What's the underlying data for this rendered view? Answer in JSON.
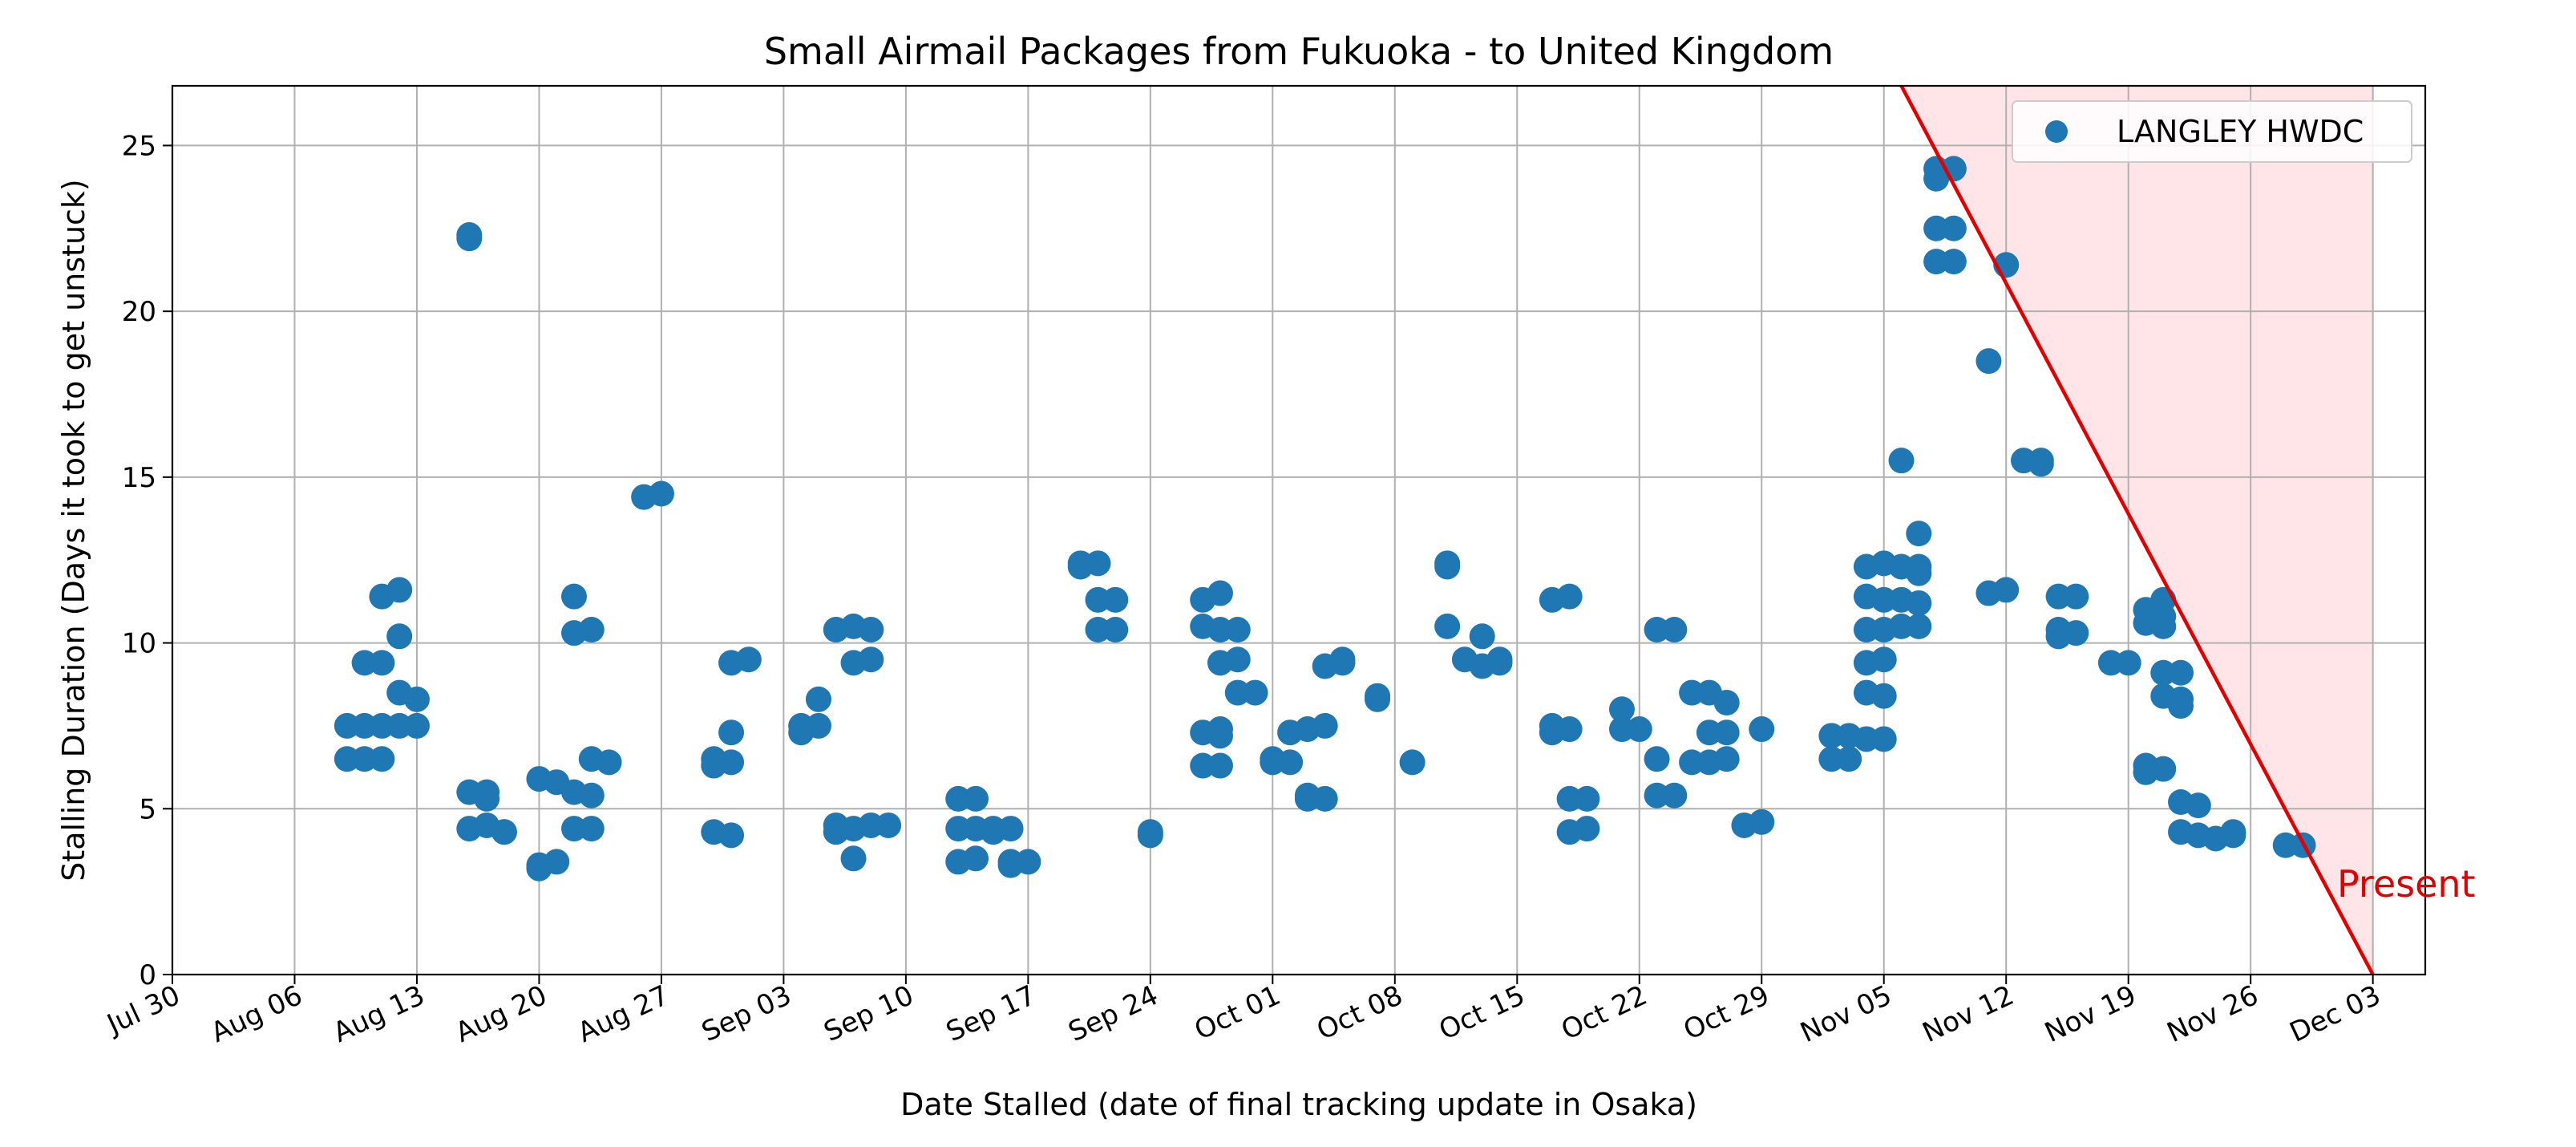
{
  "chart_data": {
    "type": "scatter",
    "title": "Small Airmail Packages from Fukuoka - to United Kingdom",
    "xlabel": "Date Stalled (date of final tracking update in Osaka)",
    "ylabel": "Stalling Duration (Days it took to get unstuck)",
    "x_axis_type": "date",
    "xlim": [
      "2023-07-30",
      "2023-12-06"
    ],
    "ylim": [
      0,
      26.8
    ],
    "x_ticks": [
      "2023-07-30",
      "2023-08-06",
      "2023-08-13",
      "2023-08-20",
      "2023-08-27",
      "2023-09-03",
      "2023-09-10",
      "2023-09-17",
      "2023-09-24",
      "2023-10-01",
      "2023-10-08",
      "2023-10-15",
      "2023-10-22",
      "2023-10-29",
      "2023-11-05",
      "2023-11-12",
      "2023-11-19",
      "2023-11-26",
      "2023-12-03"
    ],
    "x_tick_labels": [
      "Jul 30",
      "Aug 06",
      "Aug 13",
      "Aug 20",
      "Aug 27",
      "Sep 03",
      "Sep 10",
      "Sep 17",
      "Sep 24",
      "Oct 01",
      "Oct 08",
      "Oct 15",
      "Oct 22",
      "Oct 29",
      "Nov 05",
      "Nov 12",
      "Nov 19",
      "Nov 26",
      "Dec 03"
    ],
    "y_ticks": [
      0,
      5,
      10,
      15,
      20,
      25
    ],
    "y_tick_labels": [
      "0",
      "5",
      "10",
      "15",
      "20",
      "25"
    ],
    "grid": true,
    "legend_position": "top-right",
    "series": [
      {
        "name": "LANGLEY HWDC",
        "color": "#1f77b4",
        "points": [
          [
            "2023-08-09",
            7.5
          ],
          [
            "2023-08-09",
            6.5
          ],
          [
            "2023-08-10",
            7.5
          ],
          [
            "2023-08-10",
            6.5
          ],
          [
            "2023-08-10",
            9.4
          ],
          [
            "2023-08-11",
            7.5
          ],
          [
            "2023-08-11",
            6.5
          ],
          [
            "2023-08-11",
            11.4
          ],
          [
            "2023-08-11",
            9.4
          ],
          [
            "2023-08-12",
            10.2
          ],
          [
            "2023-08-12",
            11.6
          ],
          [
            "2023-08-12",
            8.5
          ],
          [
            "2023-08-12",
            7.5
          ],
          [
            "2023-08-13",
            8.3
          ],
          [
            "2023-08-13",
            7.5
          ],
          [
            "2023-08-16",
            22.3
          ],
          [
            "2023-08-16",
            22.2
          ],
          [
            "2023-08-16",
            5.5
          ],
          [
            "2023-08-16",
            4.4
          ],
          [
            "2023-08-17",
            5.3
          ],
          [
            "2023-08-17",
            4.5
          ],
          [
            "2023-08-17",
            5.5
          ],
          [
            "2023-08-18",
            4.3
          ],
          [
            "2023-08-18",
            4.3
          ],
          [
            "2023-08-20",
            3.3
          ],
          [
            "2023-08-20",
            3.2
          ],
          [
            "2023-08-20",
            5.9
          ],
          [
            "2023-08-21",
            3.4
          ],
          [
            "2023-08-21",
            5.8
          ],
          [
            "2023-08-22",
            5.5
          ],
          [
            "2023-08-22",
            11.4
          ],
          [
            "2023-08-22",
            10.3
          ],
          [
            "2023-08-22",
            4.4
          ],
          [
            "2023-08-23",
            10.4
          ],
          [
            "2023-08-23",
            5.4
          ],
          [
            "2023-08-23",
            4.4
          ],
          [
            "2023-08-23",
            6.5
          ],
          [
            "2023-08-24",
            6.4
          ],
          [
            "2023-08-26",
            14.4
          ],
          [
            "2023-08-27",
            14.5
          ],
          [
            "2023-08-30",
            6.5
          ],
          [
            "2023-08-30",
            4.3
          ],
          [
            "2023-08-30",
            6.3
          ],
          [
            "2023-08-31",
            4.2
          ],
          [
            "2023-08-31",
            7.3
          ],
          [
            "2023-08-31",
            6.4
          ],
          [
            "2023-08-31",
            9.4
          ],
          [
            "2023-09-01",
            9.5
          ],
          [
            "2023-09-04",
            7.3
          ],
          [
            "2023-09-04",
            7.5
          ],
          [
            "2023-09-05",
            8.3
          ],
          [
            "2023-09-05",
            7.5
          ],
          [
            "2023-09-06",
            10.4
          ],
          [
            "2023-09-06",
            4.5
          ],
          [
            "2023-09-06",
            4.3
          ],
          [
            "2023-09-07",
            3.5
          ],
          [
            "2023-09-07",
            10.5
          ],
          [
            "2023-09-07",
            9.4
          ],
          [
            "2023-09-07",
            4.4
          ],
          [
            "2023-09-08",
            10.4
          ],
          [
            "2023-09-08",
            9.5
          ],
          [
            "2023-09-08",
            4.5
          ],
          [
            "2023-09-09",
            4.5
          ],
          [
            "2023-09-13",
            5.3
          ],
          [
            "2023-09-13",
            4.4
          ],
          [
            "2023-09-13",
            3.4
          ],
          [
            "2023-09-14",
            5.3
          ],
          [
            "2023-09-14",
            4.4
          ],
          [
            "2023-09-14",
            3.5
          ],
          [
            "2023-09-15",
            4.3
          ],
          [
            "2023-09-15",
            4.4
          ],
          [
            "2023-09-16",
            4.4
          ],
          [
            "2023-09-16",
            3.4
          ],
          [
            "2023-09-16",
            3.3
          ],
          [
            "2023-09-17",
            3.4
          ],
          [
            "2023-09-20",
            12.4
          ],
          [
            "2023-09-20",
            12.3
          ],
          [
            "2023-09-21",
            12.4
          ],
          [
            "2023-09-21",
            11.3
          ],
          [
            "2023-09-21",
            10.4
          ],
          [
            "2023-09-22",
            11.3
          ],
          [
            "2023-09-22",
            10.4
          ],
          [
            "2023-09-24",
            4.2
          ],
          [
            "2023-09-24",
            4.3
          ],
          [
            "2023-09-27",
            11.3
          ],
          [
            "2023-09-27",
            10.5
          ],
          [
            "2023-09-27",
            7.3
          ],
          [
            "2023-09-27",
            6.3
          ],
          [
            "2023-09-28",
            11.5
          ],
          [
            "2023-09-28",
            10.4
          ],
          [
            "2023-09-28",
            7.4
          ],
          [
            "2023-09-28",
            7.2
          ],
          [
            "2023-09-28",
            6.3
          ],
          [
            "2023-09-28",
            9.4
          ],
          [
            "2023-09-29",
            10.4
          ],
          [
            "2023-09-29",
            9.5
          ],
          [
            "2023-09-29",
            8.5
          ],
          [
            "2023-09-30",
            8.5
          ],
          [
            "2023-10-01",
            6.4
          ],
          [
            "2023-10-01",
            6.5
          ],
          [
            "2023-10-02",
            7.3
          ],
          [
            "2023-10-02",
            6.4
          ],
          [
            "2023-10-03",
            7.4
          ],
          [
            "2023-10-03",
            5.3
          ],
          [
            "2023-10-03",
            5.4
          ],
          [
            "2023-10-04",
            7.5
          ],
          [
            "2023-10-04",
            5.3
          ],
          [
            "2023-10-04",
            9.3
          ],
          [
            "2023-10-05",
            9.5
          ],
          [
            "2023-10-05",
            9.4
          ],
          [
            "2023-10-07",
            8.3
          ],
          [
            "2023-10-07",
            8.4
          ],
          [
            "2023-10-09",
            6.4
          ],
          [
            "2023-10-11",
            12.3
          ],
          [
            "2023-10-11",
            12.4
          ],
          [
            "2023-10-11",
            10.5
          ],
          [
            "2023-10-12",
            9.5
          ],
          [
            "2023-10-13",
            9.3
          ],
          [
            "2023-10-13",
            10.2
          ],
          [
            "2023-10-14",
            9.5
          ],
          [
            "2023-10-14",
            9.4
          ],
          [
            "2023-10-17",
            11.3
          ],
          [
            "2023-10-17",
            7.3
          ],
          [
            "2023-10-17",
            7.5
          ],
          [
            "2023-10-18",
            11.4
          ],
          [
            "2023-10-18",
            7.4
          ],
          [
            "2023-10-18",
            5.3
          ],
          [
            "2023-10-18",
            4.3
          ],
          [
            "2023-10-19",
            5.3
          ],
          [
            "2023-10-19",
            4.4
          ],
          [
            "2023-10-21",
            8.0
          ],
          [
            "2023-10-21",
            7.4
          ],
          [
            "2023-10-22",
            7.4
          ],
          [
            "2023-10-23",
            10.4
          ],
          [
            "2023-10-23",
            6.5
          ],
          [
            "2023-10-23",
            5.4
          ],
          [
            "2023-10-24",
            10.4
          ],
          [
            "2023-10-24",
            5.4
          ],
          [
            "2023-10-25",
            6.4
          ],
          [
            "2023-10-25",
            8.5
          ],
          [
            "2023-10-26",
            8.5
          ],
          [
            "2023-10-26",
            6.4
          ],
          [
            "2023-10-26",
            7.3
          ],
          [
            "2023-10-27",
            7.3
          ],
          [
            "2023-10-27",
            6.5
          ],
          [
            "2023-10-27",
            8.2
          ],
          [
            "2023-10-28",
            4.5
          ],
          [
            "2023-10-29",
            4.6
          ],
          [
            "2023-10-29",
            7.4
          ],
          [
            "2023-11-02",
            7.2
          ],
          [
            "2023-11-02",
            6.5
          ],
          [
            "2023-11-03",
            7.2
          ],
          [
            "2023-11-03",
            6.5
          ],
          [
            "2023-11-04",
            12.3
          ],
          [
            "2023-11-04",
            11.4
          ],
          [
            "2023-11-04",
            10.4
          ],
          [
            "2023-11-04",
            9.4
          ],
          [
            "2023-11-04",
            8.5
          ],
          [
            "2023-11-04",
            7.1
          ],
          [
            "2023-11-05",
            12.4
          ],
          [
            "2023-11-05",
            11.3
          ],
          [
            "2023-11-05",
            10.4
          ],
          [
            "2023-11-05",
            9.5
          ],
          [
            "2023-11-05",
            8.4
          ],
          [
            "2023-11-05",
            7.1
          ],
          [
            "2023-11-06",
            12.3
          ],
          [
            "2023-11-06",
            11.3
          ],
          [
            "2023-11-06",
            10.5
          ],
          [
            "2023-11-06",
            15.5
          ],
          [
            "2023-11-07",
            13.3
          ],
          [
            "2023-11-07",
            12.1
          ],
          [
            "2023-11-07",
            11.2
          ],
          [
            "2023-11-07",
            10.5
          ],
          [
            "2023-11-07",
            12.3
          ],
          [
            "2023-11-08",
            24.3
          ],
          [
            "2023-11-08",
            24.0
          ],
          [
            "2023-11-08",
            22.5
          ],
          [
            "2023-11-08",
            21.5
          ],
          [
            "2023-11-09",
            24.3
          ],
          [
            "2023-11-09",
            22.5
          ],
          [
            "2023-11-09",
            21.5
          ],
          [
            "2023-11-11",
            18.5
          ],
          [
            "2023-11-11",
            11.5
          ],
          [
            "2023-11-12",
            21.4
          ],
          [
            "2023-11-12",
            11.6
          ],
          [
            "2023-11-13",
            15.5
          ],
          [
            "2023-11-14",
            15.5
          ],
          [
            "2023-11-14",
            15.4
          ],
          [
            "2023-11-15",
            11.4
          ],
          [
            "2023-11-15",
            10.2
          ],
          [
            "2023-11-15",
            10.4
          ],
          [
            "2023-11-16",
            11.4
          ],
          [
            "2023-11-16",
            10.3
          ],
          [
            "2023-11-18",
            9.4
          ],
          [
            "2023-11-19",
            9.4
          ],
          [
            "2023-11-20",
            11.0
          ],
          [
            "2023-11-20",
            10.6
          ],
          [
            "2023-11-20",
            6.3
          ],
          [
            "2023-11-20",
            6.1
          ],
          [
            "2023-11-21",
            10.8
          ],
          [
            "2023-11-21",
            10.5
          ],
          [
            "2023-11-21",
            6.2
          ],
          [
            "2023-11-21",
            9.1
          ],
          [
            "2023-11-21",
            11.3
          ],
          [
            "2023-11-21",
            8.4
          ],
          [
            "2023-11-22",
            9.1
          ],
          [
            "2023-11-22",
            8.3
          ],
          [
            "2023-11-22",
            8.1
          ],
          [
            "2023-11-22",
            5.2
          ],
          [
            "2023-11-22",
            4.3
          ],
          [
            "2023-11-23",
            5.1
          ],
          [
            "2023-11-23",
            4.2
          ],
          [
            "2023-11-24",
            4.1
          ],
          [
            "2023-11-25",
            4.3
          ],
          [
            "2023-11-25",
            4.2
          ],
          [
            "2023-11-28",
            3.9
          ],
          [
            "2023-11-29",
            3.9
          ]
        ]
      }
    ],
    "annotation": {
      "label": "Present",
      "color": "#e00000",
      "fill_color": "#ffe5e7",
      "line_from": [
        "2023-11-06",
        26.8
      ],
      "line_to": [
        "2023-12-03",
        0
      ],
      "shaded_region_right_edge": "2023-12-03"
    }
  }
}
